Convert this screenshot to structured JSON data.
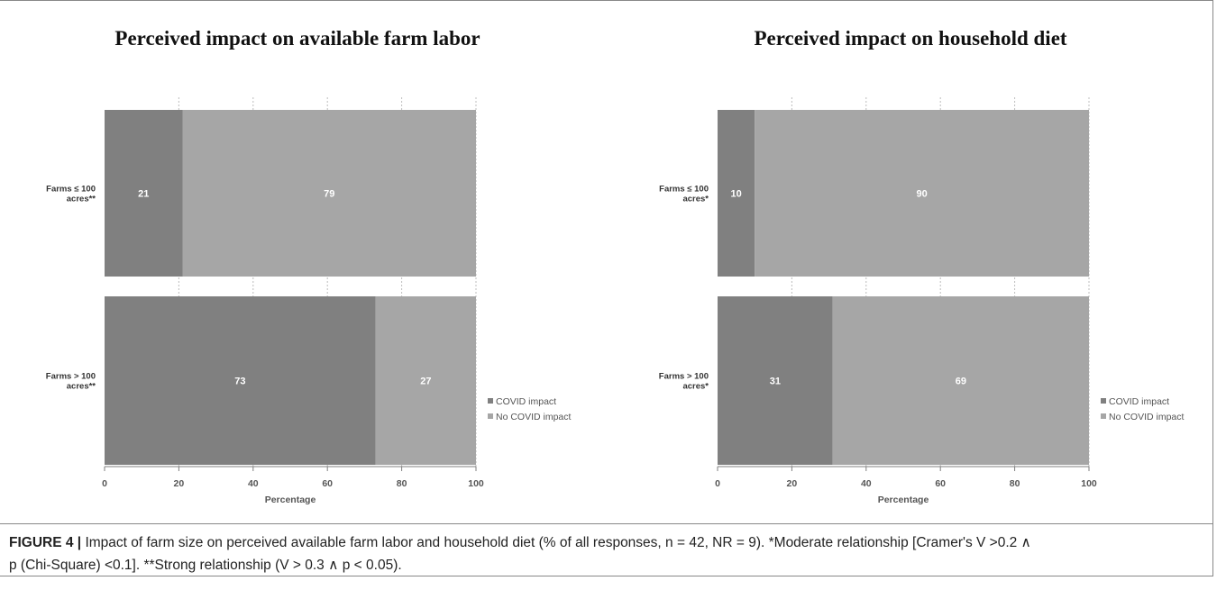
{
  "chart_data": [
    {
      "type": "bar",
      "stacked": true,
      "orientation": "horizontal",
      "title": "Perceived impact on available farm labor",
      "xlabel": "Percentage",
      "xlim": [
        0,
        100
      ],
      "xticks": [
        "0",
        "20",
        "40",
        "60",
        "80",
        "100"
      ],
      "grid": true,
      "legend_position": "right",
      "categories": [
        "Farms ≤ 100 acres**",
        "Farms > 100 acres**"
      ],
      "category_lines": [
        [
          "Farms ≤ 100",
          "acres**"
        ],
        [
          "Farms > 100",
          "acres**"
        ]
      ],
      "series": [
        {
          "name": "COVID impact",
          "color": "#808080",
          "values": [
            21,
            73
          ]
        },
        {
          "name": "No COVID impact",
          "color": "#a6a6a6",
          "values": [
            79,
            27
          ]
        }
      ]
    },
    {
      "type": "bar",
      "stacked": true,
      "orientation": "horizontal",
      "title": "Perceived impact on household diet",
      "xlabel": "Percentage",
      "xlim": [
        0,
        100
      ],
      "xticks": [
        "0",
        "20",
        "40",
        "60",
        "80",
        "100"
      ],
      "grid": true,
      "legend_position": "right",
      "categories": [
        "Farms ≤ 100 acres*",
        "Farms > 100 acres*"
      ],
      "category_lines": [
        [
          "Farms ≤ 100",
          "acres*"
        ],
        [
          "Farms > 100",
          "acres*"
        ]
      ],
      "series": [
        {
          "name": "COVID impact",
          "color": "#808080",
          "values": [
            10,
            31
          ]
        },
        {
          "name": "No COVID impact",
          "color": "#a6a6a6",
          "values": [
            90,
            69
          ]
        }
      ]
    }
  ],
  "caption": {
    "label": "FIGURE 4 |",
    "line1": " Impact of farm size on perceived available farm labor and household diet (% of all responses, n = 42, NR = 9). *Moderate relationship [Cramer's V >0.2 ∧",
    "line2": "p (Chi-Square) <0.1]. **Strong relationship (V > 0.3 ∧ p < 0.05)."
  }
}
